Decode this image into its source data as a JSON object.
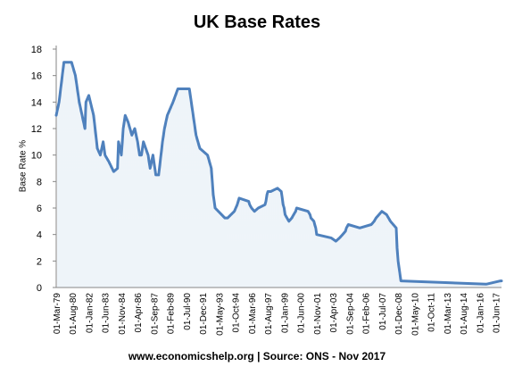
{
  "chart_data": {
    "type": "line",
    "title": "UK Base Rates",
    "ylabel": "Base Rate %",
    "xlabel": "",
    "ylim": [
      0,
      18
    ],
    "yticks": [
      0,
      2,
      4,
      6,
      8,
      10,
      12,
      14,
      16,
      18
    ],
    "grid": false,
    "legend": "none",
    "x_tick_labels": [
      "01-Mar-79",
      "01-Aug-80",
      "01-Jan-82",
      "01-Jun-83",
      "01-Nov-84",
      "01-Apr-86",
      "01-Sep-87",
      "01-Feb-89",
      "01-Jul-90",
      "01-Dec-91",
      "01-May-93",
      "01-Oct-94",
      "01-Mar-96",
      "01-Aug-97",
      "01-Jan-99",
      "01-Jun-00",
      "01-Nov-01",
      "01-Apr-03",
      "01-Sep-04",
      "01-Feb-06",
      "01-Jul-07",
      "01-Dec-08",
      "01-May-10",
      "01-Oct-11",
      "01-Mar-13",
      "01-Aug-14",
      "01-Jan-16",
      "01-Jun-17"
    ],
    "series": [
      {
        "color": "#4f81bd",
        "x": [
          "1979-03",
          "1979-06",
          "1979-11",
          "1980-07",
          "1980-11",
          "1981-03",
          "1981-09",
          "1981-10",
          "1982-01",
          "1982-06",
          "1982-10",
          "1983-01",
          "1983-04",
          "1983-06",
          "1983-10",
          "1984-03",
          "1984-07",
          "1984-08",
          "1984-11",
          "1985-01",
          "1985-03",
          "1985-06",
          "1985-10",
          "1986-01",
          "1986-04",
          "1986-06",
          "1986-08",
          "1986-10",
          "1987-03",
          "1987-05",
          "1987-08",
          "1987-11",
          "1988-02",
          "1988-06",
          "1988-08",
          "1988-11",
          "1989-05",
          "1989-10",
          "1990-10",
          "1991-02",
          "1991-05",
          "1991-07",
          "1991-09",
          "1992-05",
          "1992-09",
          "1992-10",
          "1992-11",
          "1993-01",
          "1993-11",
          "1994-02",
          "1994-09",
          "1994-12",
          "1995-02",
          "1995-12",
          "1996-01",
          "1996-03",
          "1996-06",
          "1996-10",
          "1997-05",
          "1997-06",
          "1997-07",
          "1997-08",
          "1997-11",
          "1998-06",
          "1998-10",
          "1998-11",
          "1998-12",
          "1999-01",
          "1999-02",
          "1999-04",
          "1999-06",
          "1999-09",
          "1999-11",
          "2000-01",
          "2000-02",
          "2001-02",
          "2001-04",
          "2001-05",
          "2001-08",
          "2001-09",
          "2001-10",
          "2001-11",
          "2003-02",
          "2003-07",
          "2003-11",
          "2004-02",
          "2004-05",
          "2004-06",
          "2004-08",
          "2005-08",
          "2006-08",
          "2006-11",
          "2007-01",
          "2007-07",
          "2007-12",
          "2008-02",
          "2008-04",
          "2008-10",
          "2008-11",
          "2008-12",
          "2009-01",
          "2009-02",
          "2009-03",
          "2016-08",
          "2017-11",
          "2017-12"
        ],
        "y": [
          13,
          14,
          17,
          17,
          16,
          14,
          12,
          14,
          14.5,
          13,
          10.5,
          10,
          11,
          10,
          9.5,
          8.75,
          9,
          11,
          10,
          12,
          13,
          12.5,
          11.5,
          12,
          11,
          10,
          10,
          11,
          10,
          9,
          10,
          8.5,
          8.5,
          11,
          12,
          13,
          14,
          15,
          15,
          13,
          11.5,
          11,
          10.5,
          10,
          9,
          8,
          7,
          6,
          5.25,
          5.25,
          5.75,
          6.25,
          6.75,
          6.5,
          6.25,
          6,
          5.75,
          6,
          6.25,
          6.5,
          7,
          7.25,
          7.25,
          7.5,
          7.25,
          6.75,
          6.25,
          6,
          5.5,
          5.25,
          5,
          5.25,
          5.5,
          5.75,
          6,
          5.75,
          5.5,
          5.25,
          5,
          4.75,
          4.5,
          4,
          3.75,
          3.5,
          3.75,
          4,
          4.25,
          4.5,
          4.75,
          4.5,
          4.75,
          5,
          5.25,
          5.75,
          5.5,
          5.25,
          5,
          4.5,
          3,
          2,
          1.5,
          1,
          0.5,
          0.25,
          0.5,
          0.5
        ]
      }
    ]
  },
  "footer": "www.economicshelp.org | Source: ONS - Nov 2017"
}
